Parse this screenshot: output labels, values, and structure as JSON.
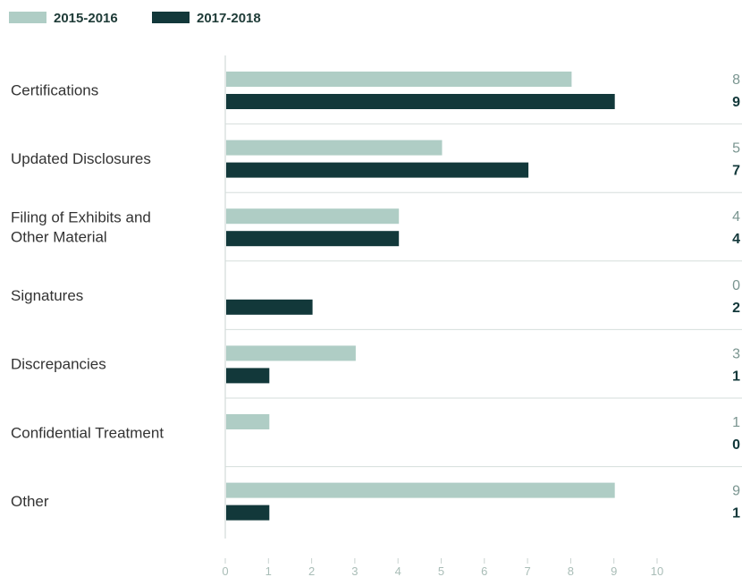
{
  "chart_data": {
    "type": "bar",
    "orientation": "horizontal",
    "categories": [
      [
        "Certifications"
      ],
      [
        "Updated Disclosures"
      ],
      [
        "Filing of Exhibits and",
        "Other Material"
      ],
      [
        "Signatures"
      ],
      [
        "Discrepancies"
      ],
      [
        "Confidential Treatment"
      ],
      [
        "Other"
      ]
    ],
    "series": [
      {
        "name": "2015-2016",
        "color": "#afcdc5",
        "values": [
          8,
          5,
          4,
          0,
          3,
          1,
          9
        ]
      },
      {
        "name": "2017-2018",
        "color": "#12383a",
        "values": [
          9,
          7,
          4,
          2,
          1,
          0,
          1
        ]
      }
    ],
    "xlim": [
      0,
      10
    ],
    "x_ticks": [
      "0",
      "1",
      "2",
      "3",
      "4",
      "5",
      "6",
      "7",
      "8",
      "9",
      "10"
    ],
    "legend_placement": "top-left",
    "grid": false,
    "value_label_colors": [
      "#7a9590",
      "#12383a"
    ]
  }
}
